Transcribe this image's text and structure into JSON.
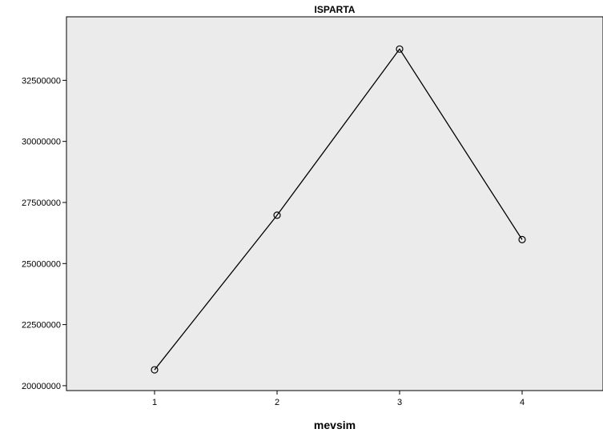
{
  "chart_data": {
    "type": "line",
    "title": "ISPARTA",
    "xlabel": "mevsim",
    "ylabel": "",
    "categories": [
      "1",
      "2",
      "3",
      "4"
    ],
    "series": [
      {
        "values": [
          20650000,
          26980000,
          33780000,
          25980000
        ]
      }
    ],
    "yticks": [
      "20000000",
      "22500000",
      "25000000",
      "27500000",
      "30000000",
      "32500000"
    ],
    "ylim": [
      19800000,
      35100000
    ],
    "grid": false,
    "legend": "none",
    "colors": {
      "plot_background": "#ebebeb",
      "line": "#000000",
      "marker": "#000000",
      "frame": "#000000"
    }
  }
}
